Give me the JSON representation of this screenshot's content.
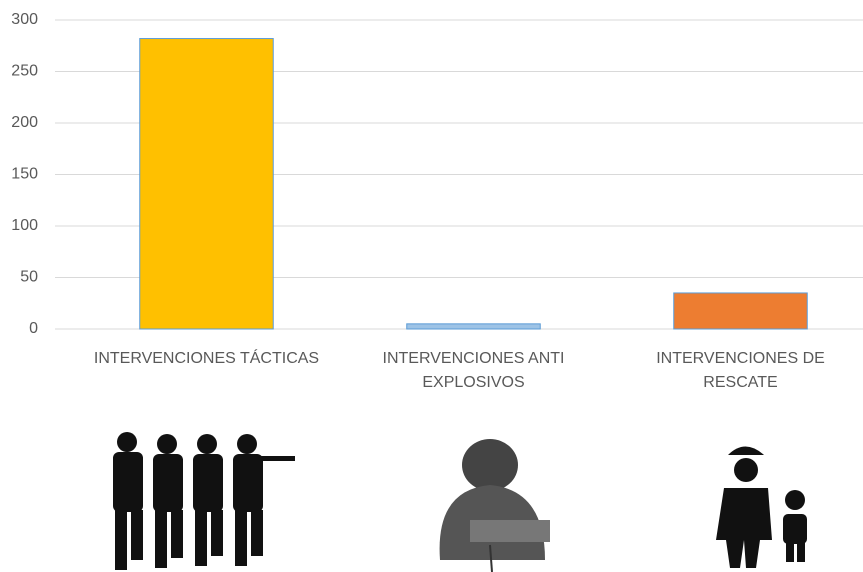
{
  "chart_data": {
    "type": "bar",
    "categories": [
      "INTERVENCIONES TÁCTICAS",
      "INTERVENCIONES ANTI EXPLOSIVOS",
      "INTERVENCIONES DE RESCATE"
    ],
    "values": [
      282,
      5,
      35
    ],
    "colors": [
      "#ffc000",
      "#9dc3e6",
      "#ed7d31"
    ],
    "ylim": [
      0,
      300
    ],
    "yticks": [
      0,
      50,
      100,
      150,
      200,
      250,
      300
    ],
    "grid": true
  }
}
